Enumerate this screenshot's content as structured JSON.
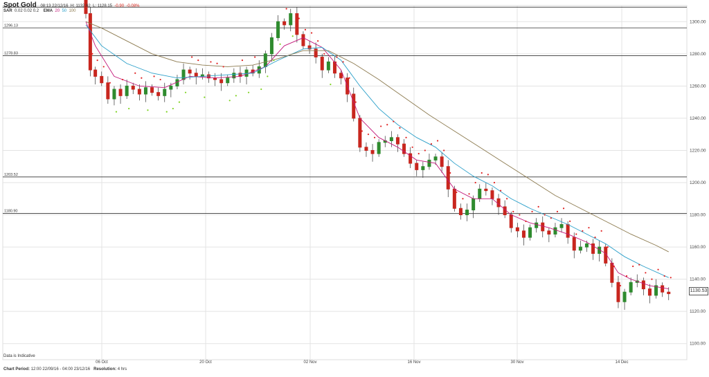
{
  "header": {
    "title": "Spot Gold",
    "timestamp": "08:13 22/12/16",
    "high": "H: 1132.62",
    "low": "L: 1128.15",
    "change": "-0.90",
    "change_pct": "-0.08%"
  },
  "indicators": {
    "sar_label": "SAR",
    "sar_params": "0.02  0.02  0.2",
    "ema_label": "EMA",
    "ema_periods": [
      "20",
      "50",
      "100"
    ],
    "ema_colors": [
      "#c2187a",
      "#2a9fc9",
      "#8c7a4f"
    ]
  },
  "footer": {
    "chart_period_label": "Chart Period:",
    "chart_period_value": "12:00 22/09/16 - 04:00 23/12/16",
    "resolution_label": "Resolution:",
    "resolution_value": "4 hrs",
    "indicative": "Data is Indicative"
  },
  "chart_data": {
    "type": "candlestick",
    "title": "Spot Gold",
    "ylim": [
      1090,
      1310
    ],
    "y_ticks": [
      "1100.00",
      "1120.00",
      "1140.00",
      "1160.00",
      "1180.00",
      "1200.00",
      "1220.00",
      "1240.00",
      "1260.00",
      "1280.00",
      "1300.00"
    ],
    "x_ticks": [
      "06 Oct",
      "20 Oct",
      "02 Nov",
      "16 Nov",
      "30 Nov",
      "14 Dec"
    ],
    "current_price": "1130.53",
    "horizontal_levels": [
      {
        "label": "1296.13",
        "value": 1296.13
      },
      {
        "label": "1278.83",
        "value": 1278.83
      },
      {
        "label": "1203.52",
        "value": 1203.52
      },
      {
        "label": "1180.90",
        "value": 1180.9
      },
      {
        "label": "",
        "value": 1309
      }
    ],
    "colors": {
      "up": "#2e8b2e",
      "down": "#c8261e",
      "sar_up": "#7ed321",
      "sar_down": "#e02020",
      "grid": "#e3e3e3"
    },
    "close_series": [
      [
        0,
        1318
      ],
      [
        1.5,
        1305
      ],
      [
        2.2,
        1270
      ],
      [
        3,
        1266
      ],
      [
        4,
        1262
      ],
      [
        5,
        1252
      ],
      [
        6,
        1258
      ],
      [
        7,
        1254
      ],
      [
        8,
        1260
      ],
      [
        9,
        1258
      ],
      [
        10,
        1255
      ],
      [
        11,
        1259
      ],
      [
        12,
        1256
      ],
      [
        13,
        1254
      ],
      [
        14,
        1258
      ],
      [
        15,
        1260
      ],
      [
        16,
        1264
      ],
      [
        17,
        1270
      ],
      [
        18,
        1268
      ],
      [
        19,
        1266
      ],
      [
        20,
        1267
      ],
      [
        21,
        1265
      ],
      [
        22,
        1264
      ],
      [
        23,
        1262
      ],
      [
        24,
        1265
      ],
      [
        25,
        1268
      ],
      [
        26,
        1266
      ],
      [
        27,
        1270
      ],
      [
        28,
        1268
      ],
      [
        29,
        1272
      ],
      [
        30,
        1280
      ],
      [
        31,
        1290
      ],
      [
        32,
        1300
      ],
      [
        33,
        1298
      ],
      [
        34,
        1305
      ],
      [
        35,
        1292
      ],
      [
        36,
        1285
      ],
      [
        37,
        1283
      ],
      [
        38,
        1278
      ],
      [
        39,
        1270
      ],
      [
        40,
        1275
      ],
      [
        41,
        1268
      ],
      [
        42,
        1265
      ],
      [
        43,
        1255
      ],
      [
        44,
        1240
      ],
      [
        45,
        1222
      ],
      [
        46,
        1220
      ],
      [
        47,
        1218
      ],
      [
        48,
        1225
      ],
      [
        49,
        1226
      ],
      [
        50,
        1228
      ],
      [
        51,
        1224
      ],
      [
        52,
        1218
      ],
      [
        53,
        1212
      ],
      [
        54,
        1208
      ],
      [
        55,
        1210
      ],
      [
        56,
        1214
      ],
      [
        57,
        1216
      ],
      [
        58,
        1210
      ],
      [
        59,
        1196
      ],
      [
        60,
        1184
      ],
      [
        61,
        1180
      ],
      [
        62,
        1183
      ],
      [
        63,
        1190
      ],
      [
        64,
        1196
      ],
      [
        65,
        1195
      ],
      [
        66,
        1190
      ],
      [
        67,
        1185
      ],
      [
        68,
        1180
      ],
      [
        69,
        1172
      ],
      [
        70,
        1170
      ],
      [
        71,
        1166
      ],
      [
        72,
        1172
      ],
      [
        73,
        1175
      ],
      [
        74,
        1170
      ],
      [
        75,
        1168
      ],
      [
        76,
        1172
      ],
      [
        77,
        1174
      ],
      [
        78,
        1166
      ],
      [
        79,
        1158
      ],
      [
        80,
        1160
      ],
      [
        81,
        1162
      ],
      [
        82,
        1156
      ],
      [
        83,
        1160
      ],
      [
        84,
        1150
      ],
      [
        85,
        1138
      ],
      [
        86,
        1126
      ],
      [
        87,
        1132
      ],
      [
        88,
        1138
      ],
      [
        89,
        1139
      ],
      [
        90,
        1134
      ],
      [
        91,
        1130
      ],
      [
        92,
        1136
      ],
      [
        93,
        1132
      ],
      [
        94,
        1131
      ]
    ],
    "ema_series": [
      {
        "name": "20",
        "values": [
          [
            1.5,
            1300
          ],
          [
            3,
            1285
          ],
          [
            6,
            1266
          ],
          [
            10,
            1260
          ],
          [
            14,
            1259
          ],
          [
            18,
            1266
          ],
          [
            22,
            1265
          ],
          [
            26,
            1266
          ],
          [
            30,
            1272
          ],
          [
            33,
            1285
          ],
          [
            36,
            1290
          ],
          [
            39,
            1284
          ],
          [
            42,
            1270
          ],
          [
            45,
            1240
          ],
          [
            48,
            1228
          ],
          [
            51,
            1222
          ],
          [
            54,
            1214
          ],
          [
            57,
            1212
          ],
          [
            60,
            1196
          ],
          [
            63,
            1190
          ],
          [
            66,
            1190
          ],
          [
            69,
            1180
          ],
          [
            72,
            1175
          ],
          [
            75,
            1172
          ],
          [
            78,
            1168
          ],
          [
            81,
            1163
          ],
          [
            84,
            1156
          ],
          [
            86,
            1144
          ],
          [
            88,
            1140
          ],
          [
            91,
            1136
          ],
          [
            94,
            1134
          ]
        ]
      },
      {
        "name": "50",
        "values": [
          [
            1.5,
            1298
          ],
          [
            4,
            1285
          ],
          [
            8,
            1274
          ],
          [
            12,
            1268
          ],
          [
            16,
            1265
          ],
          [
            20,
            1266
          ],
          [
            24,
            1267
          ],
          [
            28,
            1268
          ],
          [
            32,
            1276
          ],
          [
            36,
            1283
          ],
          [
            39,
            1284
          ],
          [
            42,
            1276
          ],
          [
            45,
            1260
          ],
          [
            48,
            1246
          ],
          [
            51,
            1236
          ],
          [
            54,
            1228
          ],
          [
            57,
            1222
          ],
          [
            60,
            1212
          ],
          [
            63,
            1204
          ],
          [
            66,
            1198
          ],
          [
            69,
            1190
          ],
          [
            72,
            1184
          ],
          [
            75,
            1179
          ],
          [
            78,
            1174
          ],
          [
            81,
            1168
          ],
          [
            84,
            1162
          ],
          [
            87,
            1154
          ],
          [
            90,
            1148
          ],
          [
            94,
            1141
          ]
        ]
      },
      {
        "name": "100",
        "values": [
          [
            1.5,
            1300
          ],
          [
            4,
            1296
          ],
          [
            8,
            1288
          ],
          [
            12,
            1280
          ],
          [
            16,
            1275
          ],
          [
            20,
            1273
          ],
          [
            24,
            1272
          ],
          [
            28,
            1273
          ],
          [
            32,
            1277
          ],
          [
            36,
            1282
          ],
          [
            40,
            1282
          ],
          [
            44,
            1274
          ],
          [
            48,
            1264
          ],
          [
            52,
            1253
          ],
          [
            56,
            1242
          ],
          [
            60,
            1232
          ],
          [
            64,
            1222
          ],
          [
            68,
            1212
          ],
          [
            72,
            1202
          ],
          [
            76,
            1192
          ],
          [
            80,
            1184
          ],
          [
            84,
            1176
          ],
          [
            88,
            1168
          ],
          [
            92,
            1161
          ],
          [
            94,
            1157
          ]
        ]
      }
    ]
  }
}
